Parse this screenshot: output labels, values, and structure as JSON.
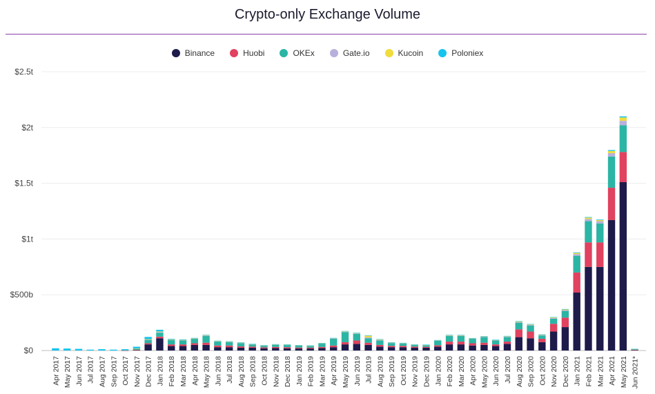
{
  "page": {
    "title": "Crypto-only Exchange Volume"
  },
  "chart_data": {
    "type": "bar",
    "stacked": true,
    "title": "Crypto-only Exchange Volume",
    "xlabel": "",
    "ylabel": "",
    "ylim": [
      0,
      2500
    ],
    "yunit": "billions USD",
    "yticks": [
      0,
      500,
      1000,
      1500,
      2000,
      2500
    ],
    "ytick_labels": [
      "$0",
      "$500b",
      "$1t",
      "$1.5t",
      "$2t",
      "$2.5t"
    ],
    "grid": true,
    "legend_position": "top-center",
    "categories": [
      "Apr 2017",
      "May 2017",
      "Jun 2017",
      "Jul 2017",
      "Aug 2017",
      "Sep 2017",
      "Oct 2017",
      "Nov 2017",
      "Dec 2017",
      "Jan 2018",
      "Feb 2018",
      "Mar 2018",
      "Apr 2018",
      "May 2018",
      "Jun 2018",
      "Jul 2018",
      "Aug 2018",
      "Sep 2018",
      "Oct 2018",
      "Nov 2018",
      "Dec 2018",
      "Jan 2019",
      "Feb 2019",
      "Mar 2019",
      "Apr 2019",
      "May 2019",
      "Jun 2019",
      "Jul 2019",
      "Aug 2019",
      "Sep 2019",
      "Oct 2019",
      "Nov 2019",
      "Dec 2019",
      "Jan 2020",
      "Feb 2020",
      "Mar 2020",
      "Apr 2020",
      "May 2020",
      "Jun 2020",
      "Jul 2020",
      "Aug 2020",
      "Sep 2020",
      "Oct 2020",
      "Nov 2020",
      "Dec 2020",
      "Jan 2021",
      "Feb 2021",
      "Mar 2021",
      "Apr 2021",
      "May 2021",
      "Jun 2021*"
    ],
    "series": [
      {
        "name": "Binance",
        "color": "#1e1b4b",
        "values": [
          0,
          0,
          0,
          0,
          0,
          0,
          1,
          5,
          55,
          110,
          40,
          40,
          50,
          50,
          30,
          30,
          25,
          25,
          20,
          22,
          20,
          18,
          18,
          22,
          30,
          55,
          60,
          50,
          35,
          30,
          30,
          25,
          25,
          35,
          55,
          55,
          45,
          50,
          40,
          60,
          120,
          110,
          75,
          170,
          210,
          520,
          750,
          750,
          1170,
          1510,
          5
        ]
      },
      {
        "name": "Huobi",
        "color": "#e0425f",
        "values": [
          0,
          0,
          0,
          0,
          0,
          0,
          1,
          2,
          10,
          15,
          15,
          15,
          15,
          20,
          15,
          15,
          12,
          10,
          8,
          10,
          10,
          8,
          8,
          10,
          15,
          20,
          30,
          20,
          15,
          12,
          12,
          10,
          8,
          12,
          25,
          25,
          20,
          20,
          15,
          20,
          70,
          60,
          30,
          70,
          85,
          180,
          220,
          220,
          290,
          270,
          2
        ]
      },
      {
        "name": "OKEx",
        "color": "#2bb5a5",
        "values": [
          0,
          0,
          0,
          0,
          0,
          0,
          2,
          10,
          30,
          35,
          40,
          35,
          40,
          60,
          35,
          30,
          30,
          20,
          15,
          20,
          20,
          18,
          15,
          30,
          60,
          90,
          60,
          40,
          40,
          25,
          20,
          15,
          15,
          40,
          50,
          50,
          40,
          50,
          35,
          40,
          60,
          55,
          30,
          45,
          60,
          150,
          190,
          170,
          280,
          240,
          5
        ]
      },
      {
        "name": "Gate.io",
        "color": "#b8b0dc",
        "values": [
          0,
          0,
          0,
          0,
          0,
          0,
          0,
          1,
          4,
          6,
          3,
          3,
          3,
          4,
          3,
          3,
          2,
          2,
          2,
          2,
          2,
          2,
          2,
          2,
          3,
          4,
          4,
          8,
          5,
          3,
          3,
          2,
          2,
          3,
          4,
          4,
          3,
          4,
          3,
          5,
          6,
          6,
          5,
          7,
          8,
          15,
          20,
          20,
          30,
          40,
          1
        ]
      },
      {
        "name": "Kucoin",
        "color": "#f0dc3c",
        "values": [
          0,
          0,
          0,
          0,
          0,
          0,
          0,
          1,
          3,
          5,
          2,
          2,
          2,
          3,
          2,
          2,
          2,
          1,
          1,
          1,
          1,
          1,
          1,
          2,
          3,
          3,
          3,
          15,
          5,
          2,
          2,
          1,
          1,
          2,
          3,
          3,
          2,
          3,
          2,
          4,
          5,
          4,
          3,
          5,
          6,
          10,
          12,
          10,
          20,
          30,
          1
        ]
      },
      {
        "name": "Poloniex",
        "color": "#16c4ee",
        "values": [
          20,
          18,
          15,
          8,
          12,
          8,
          8,
          15,
          20,
          15,
          5,
          5,
          3,
          4,
          3,
          3,
          2,
          2,
          2,
          2,
          2,
          2,
          2,
          2,
          2,
          3,
          3,
          3,
          2,
          2,
          2,
          2,
          2,
          2,
          3,
          3,
          2,
          2,
          2,
          2,
          3,
          3,
          2,
          3,
          3,
          5,
          5,
          5,
          8,
          10,
          1
        ]
      }
    ]
  }
}
